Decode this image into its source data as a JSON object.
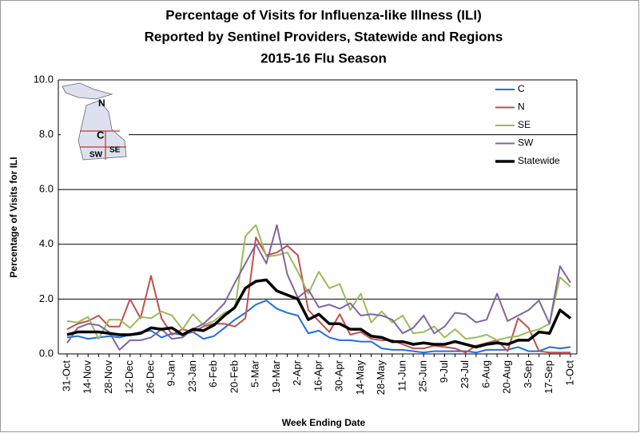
{
  "chart_data": {
    "type": "line",
    "title": [
      "Percentage of Visits for Influenza-like Illness (ILI)",
      "Reported by Sentinel Providers, Statewide and Regions",
      "2015-16 Flu Season"
    ],
    "x_label": "Week Ending Date",
    "y_label": "Percentage of Visits for ILI",
    "map_labels": [
      "N",
      "C",
      "SE",
      "SW"
    ],
    "categories": [
      "31-Oct",
      null,
      "14-Nov",
      null,
      "28-Nov",
      null,
      "12-Dec",
      null,
      "26-Dec",
      null,
      "9-Jan",
      null,
      "23-Jan",
      null,
      "6-Feb",
      null,
      "20-Feb",
      null,
      "5-Mar",
      null,
      "19-Mar",
      null,
      "2-Apr",
      null,
      "16-Apr",
      null,
      "30-Apr",
      null,
      "14-May",
      null,
      "28-May",
      null,
      "11-Jun",
      null,
      "25-Jun",
      null,
      "9-Jul",
      null,
      "23-Jul",
      null,
      "6-Aug",
      null,
      "20-Aug",
      null,
      "3-Sep",
      null,
      "17-Sep",
      null,
      "1-Oct"
    ],
    "ylim": [
      0,
      10
    ],
    "yticks": [
      {
        "value": 0,
        "label": "0.0"
      },
      {
        "value": 2,
        "label": "2.0"
      },
      {
        "value": 4,
        "label": "4.0"
      },
      {
        "value": 6,
        "label": "6.0"
      },
      {
        "value": 8,
        "label": "8.0"
      },
      {
        "value": 10,
        "label": "10.0"
      }
    ],
    "grid": true,
    "legend": "upper right",
    "series": [
      {
        "name": "C",
        "color": "#1f6fe0",
        "width": 2,
        "values": [
          0.6,
          0.65,
          0.55,
          0.6,
          0.65,
          0.6,
          0.7,
          0.8,
          0.85,
          0.6,
          0.75,
          0.7,
          0.8,
          0.55,
          0.65,
          0.95,
          1.25,
          1.5,
          1.8,
          1.95,
          1.65,
          1.5,
          1.4,
          0.75,
          0.85,
          0.6,
          0.5,
          0.5,
          0.45,
          0.45,
          0.2,
          0.15,
          0.15,
          0.1,
          0.05,
          0.1,
          0.1,
          0.1,
          0.1,
          0.05,
          0.15,
          0.15,
          0.15,
          0.25,
          0.1,
          0.1,
          0.25,
          0.2,
          0.25
        ]
      },
      {
        "name": "N",
        "color": "#c0504d",
        "width": 2,
        "values": [
          0.9,
          1.1,
          1.2,
          1.4,
          1.0,
          1.0,
          2.0,
          1.3,
          2.85,
          1.3,
          0.7,
          0.9,
          0.8,
          1.0,
          1.1,
          1.1,
          1.0,
          1.3,
          4.25,
          3.6,
          3.7,
          3.95,
          3.6,
          1.6,
          1.2,
          0.8,
          1.45,
          0.7,
          0.8,
          0.55,
          0.5,
          0.5,
          0.35,
          0.2,
          0.2,
          0.3,
          0.25,
          0.2,
          0.05,
          0.3,
          0.4,
          0.5,
          0.1,
          1.3,
          0.95,
          0.1,
          0.05,
          0.05,
          0.05
        ]
      },
      {
        "name": "SE",
        "color": "#9bbb59",
        "width": 2,
        "values": [
          1.2,
          1.15,
          1.35,
          0.55,
          1.25,
          1.25,
          0.95,
          1.35,
          1.3,
          1.55,
          1.4,
          0.9,
          1.45,
          1.05,
          1.2,
          1.5,
          1.65,
          4.3,
          4.7,
          3.55,
          3.6,
          3.7,
          3.0,
          2.2,
          3.0,
          2.4,
          2.55,
          1.6,
          2.2,
          1.15,
          1.55,
          1.15,
          1.4,
          0.75,
          0.8,
          1.0,
          0.6,
          0.9,
          0.55,
          0.6,
          0.7,
          0.5,
          0.6,
          0.65,
          0.8,
          0.9,
          1.1,
          2.8,
          2.45
        ]
      },
      {
        "name": "SW",
        "color": "#8064a2",
        "width": 2,
        "values": [
          0.4,
          0.95,
          1.1,
          1.05,
          0.8,
          0.15,
          0.5,
          0.5,
          0.6,
          0.9,
          0.55,
          0.6,
          0.9,
          1.1,
          1.45,
          1.85,
          2.6,
          3.3,
          4.0,
          3.3,
          4.7,
          2.9,
          2.05,
          2.35,
          1.7,
          1.8,
          1.65,
          1.85,
          1.4,
          1.45,
          1.4,
          1.25,
          0.75,
          0.95,
          1.4,
          0.75,
          1.0,
          1.5,
          1.45,
          1.15,
          1.25,
          2.2,
          1.2,
          1.4,
          1.6,
          1.95,
          1.1,
          3.2,
          2.6
        ]
      },
      {
        "name": "Statewide",
        "color": "#000000",
        "width": 3.5,
        "values": [
          0.7,
          0.8,
          0.8,
          0.8,
          0.75,
          0.7,
          0.7,
          0.75,
          0.95,
          0.9,
          0.95,
          0.7,
          0.9,
          0.85,
          1.05,
          1.4,
          1.7,
          2.4,
          2.65,
          2.7,
          2.3,
          2.15,
          2.0,
          1.25,
          1.45,
          1.1,
          1.1,
          0.9,
          0.9,
          0.65,
          0.6,
          0.45,
          0.45,
          0.35,
          0.4,
          0.35,
          0.35,
          0.45,
          0.35,
          0.25,
          0.35,
          0.4,
          0.35,
          0.5,
          0.5,
          0.8,
          0.75,
          1.6,
          1.3
        ]
      }
    ]
  }
}
